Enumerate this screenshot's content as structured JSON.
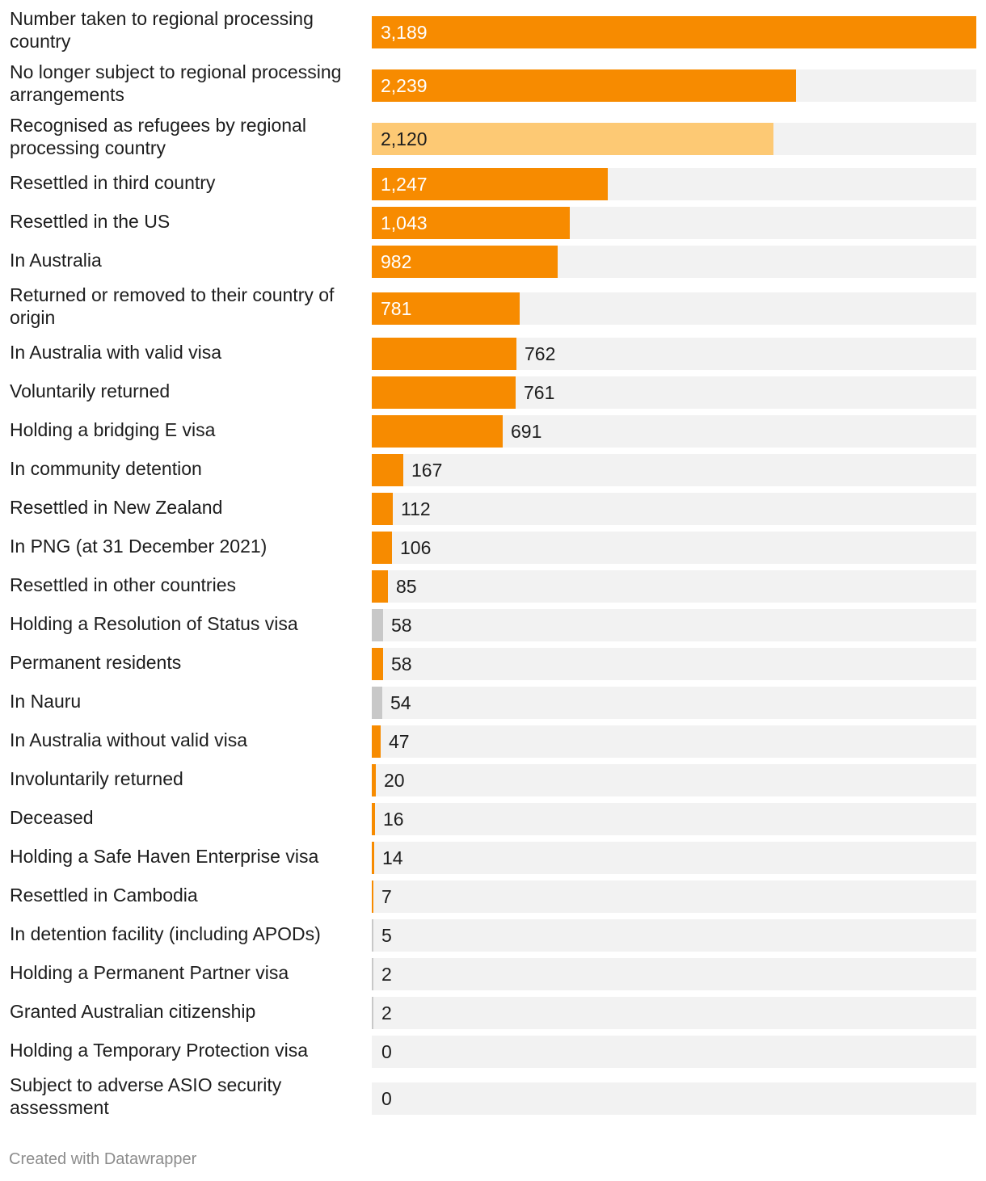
{
  "chart_data": {
    "type": "bar",
    "orientation": "horizontal",
    "title": "",
    "xlim": [
      0,
      3189
    ],
    "colors": {
      "orange": "#f78b00",
      "light_orange": "#fdc974",
      "grey": "#c8c8c8",
      "track": "#f2f2f2"
    },
    "rows": [
      {
        "label": "Number taken to regional processing country",
        "value": 3189,
        "display": "3,189",
        "color": "orange"
      },
      {
        "label": "No longer subject to regional processing arrangements",
        "value": 2239,
        "display": "2,239",
        "color": "orange"
      },
      {
        "label": "Recognised as refugees by regional processing country",
        "value": 2120,
        "display": "2,120",
        "color": "light_orange"
      },
      {
        "label": "Resettled in third country",
        "value": 1247,
        "display": "1,247",
        "color": "orange"
      },
      {
        "label": "Resettled in the US",
        "value": 1043,
        "display": "1,043",
        "color": "orange"
      },
      {
        "label": "In Australia",
        "value": 982,
        "display": "982",
        "color": "orange"
      },
      {
        "label": "Returned or removed to their country of origin",
        "value": 781,
        "display": "781",
        "color": "orange"
      },
      {
        "label": "In Australia with valid visa",
        "value": 762,
        "display": "762",
        "color": "orange"
      },
      {
        "label": "Voluntarily returned",
        "value": 761,
        "display": "761",
        "color": "orange"
      },
      {
        "label": "Holding a bridging E visa",
        "value": 691,
        "display": "691",
        "color": "orange"
      },
      {
        "label": "In community detention",
        "value": 167,
        "display": "167",
        "color": "orange"
      },
      {
        "label": "Resettled in New Zealand",
        "value": 112,
        "display": "112",
        "color": "orange"
      },
      {
        "label": "In PNG (at 31 December 2021)",
        "value": 106,
        "display": "106",
        "color": "orange"
      },
      {
        "label": "Resettled in other countries",
        "value": 85,
        "display": "85",
        "color": "orange"
      },
      {
        "label": "Holding a Resolution of Status visa",
        "value": 58,
        "display": "58",
        "color": "grey"
      },
      {
        "label": "Permanent residents",
        "value": 58,
        "display": "58",
        "color": "orange"
      },
      {
        "label": "In Nauru",
        "value": 54,
        "display": "54",
        "color": "grey"
      },
      {
        "label": "In Australia without valid visa",
        "value": 47,
        "display": "47",
        "color": "orange"
      },
      {
        "label": "Involuntarily returned",
        "value": 20,
        "display": "20",
        "color": "orange"
      },
      {
        "label": "Deceased",
        "value": 16,
        "display": "16",
        "color": "orange"
      },
      {
        "label": "Holding a Safe Haven Enterprise visa",
        "value": 14,
        "display": "14",
        "color": "orange"
      },
      {
        "label": "Resettled in Cambodia",
        "value": 7,
        "display": "7",
        "color": "orange"
      },
      {
        "label": "In detention facility (including APODs)",
        "value": 5,
        "display": "5",
        "color": "grey"
      },
      {
        "label": "Holding a Permanent Partner visa",
        "value": 2,
        "display": "2",
        "color": "grey"
      },
      {
        "label": "Granted Australian citizenship",
        "value": 2,
        "display": "2",
        "color": "grey"
      },
      {
        "label": "Holding a Temporary Protection visa",
        "value": 0,
        "display": "0",
        "color": "grey"
      },
      {
        "label": "Subject to adverse ASIO security assessment",
        "value": 0,
        "display": "0",
        "color": "grey"
      }
    ]
  },
  "footer": {
    "credit": "Created with Datawrapper"
  }
}
